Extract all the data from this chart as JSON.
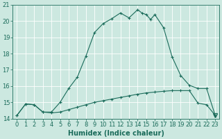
{
  "xlabel": "Humidex (Indice chaleur)",
  "ylabel": "",
  "bg_color": "#cce8e0",
  "line_color": "#1a6b5a",
  "grid_color": "#b8d8d0",
  "xlim": [
    -0.5,
    23.5
  ],
  "ylim": [
    14,
    21
  ],
  "yticks": [
    14,
    15,
    16,
    17,
    18,
    19,
    20,
    21
  ],
  "xticks": [
    0,
    1,
    2,
    3,
    4,
    5,
    6,
    7,
    8,
    9,
    10,
    11,
    12,
    13,
    14,
    15,
    16,
    17,
    18,
    19,
    20,
    21,
    22,
    23
  ],
  "line1_x": [
    0,
    1,
    2,
    3,
    4,
    5,
    6,
    7,
    8,
    9,
    10,
    11,
    12,
    13,
    14,
    14.5,
    15,
    15.5,
    16,
    17,
    18,
    19,
    20,
    21,
    22,
    23
  ],
  "line1_y": [
    14.2,
    14.9,
    14.85,
    14.4,
    14.4,
    15.0,
    15.85,
    16.55,
    17.85,
    19.3,
    19.85,
    20.15,
    20.5,
    20.2,
    20.7,
    20.5,
    20.4,
    20.1,
    20.4,
    19.6,
    17.8,
    16.65,
    16.05,
    15.85,
    15.85,
    14.2
  ],
  "line2_x": [
    0,
    1,
    2,
    3,
    4,
    5,
    6,
    7,
    8,
    9,
    10,
    11,
    12,
    13,
    14,
    15,
    16,
    17,
    18,
    19,
    20,
    21,
    22,
    23
  ],
  "line2_y": [
    14.2,
    14.9,
    14.85,
    14.4,
    14.35,
    14.4,
    14.55,
    14.7,
    14.85,
    15.0,
    15.1,
    15.2,
    15.3,
    15.4,
    15.5,
    15.58,
    15.63,
    15.68,
    15.72,
    15.72,
    15.72,
    14.95,
    14.85,
    14.2
  ],
  "tick_fontsize": 6,
  "label_fontsize": 7
}
